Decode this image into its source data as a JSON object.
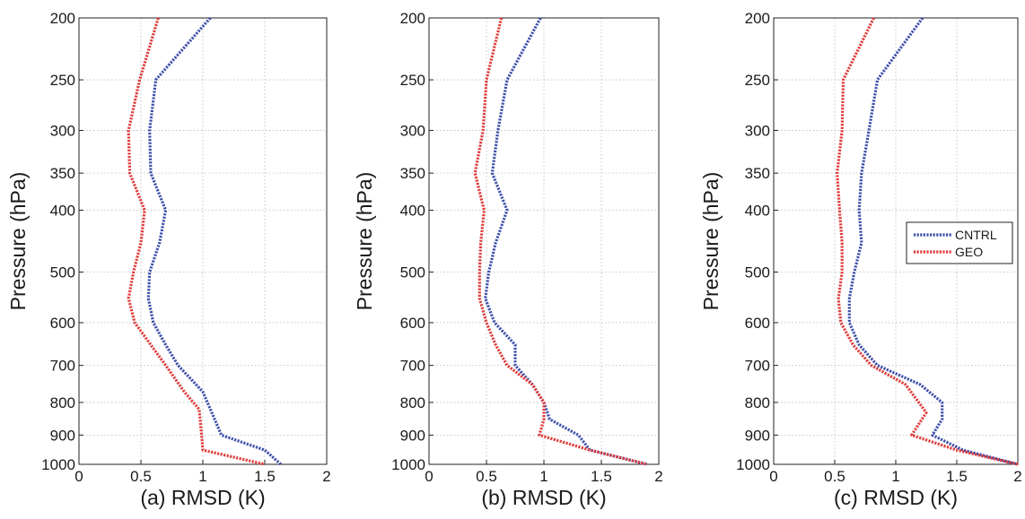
{
  "chart_data": [
    {
      "type": "line",
      "xlabel": "(a) RMSD (K)",
      "ylabel": "Pressure (hPa)",
      "xlim": [
        0,
        2
      ],
      "ylim": [
        200,
        1000
      ],
      "yscale": "log",
      "y_inverted": true,
      "grid": true,
      "xticks": [
        "0",
        "0.5",
        "1",
        "1.5",
        "2"
      ],
      "yticks": [
        "200",
        "250",
        "300",
        "350",
        "400",
        "500",
        "600",
        "700",
        "800",
        "900",
        "1000"
      ],
      "series": [
        {
          "name": "CNTRL",
          "color": "#3d4faa",
          "points": [
            [
              1.06,
              200
            ],
            [
              0.62,
              250
            ],
            [
              0.57,
              300
            ],
            [
              0.58,
              350
            ],
            [
              0.7,
              400
            ],
            [
              0.65,
              450
            ],
            [
              0.57,
              500
            ],
            [
              0.56,
              550
            ],
            [
              0.6,
              600
            ],
            [
              0.7,
              650
            ],
            [
              0.8,
              700
            ],
            [
              1.0,
              770
            ],
            [
              1.15,
              900
            ],
            [
              1.5,
              950
            ],
            [
              1.63,
              1000
            ]
          ]
        },
        {
          "name": "GEO",
          "color": "#e03c3c",
          "points": [
            [
              0.64,
              200
            ],
            [
              0.49,
              250
            ],
            [
              0.4,
              300
            ],
            [
              0.41,
              350
            ],
            [
              0.53,
              400
            ],
            [
              0.5,
              450
            ],
            [
              0.44,
              500
            ],
            [
              0.4,
              550
            ],
            [
              0.45,
              600
            ],
            [
              0.58,
              650
            ],
            [
              0.7,
              700
            ],
            [
              0.85,
              770
            ],
            [
              0.97,
              820
            ],
            [
              0.99,
              900
            ],
            [
              1.0,
              950
            ],
            [
              1.5,
              1000
            ]
          ]
        }
      ]
    },
    {
      "type": "line",
      "xlabel": "(b) RMSD (K)",
      "ylabel": "Pressure (hPa)",
      "xlim": [
        0,
        2
      ],
      "ylim": [
        200,
        1000
      ],
      "yscale": "log",
      "y_inverted": true,
      "grid": true,
      "xticks": [
        "0",
        "0.5",
        "1",
        "1.5",
        "2"
      ],
      "yticks": [
        "200",
        "250",
        "300",
        "350",
        "400",
        "500",
        "600",
        "700",
        "800",
        "900",
        "1000"
      ],
      "series": [
        {
          "name": "CNTRL",
          "color": "#3d4faa",
          "points": [
            [
              0.97,
              200
            ],
            [
              0.68,
              250
            ],
            [
              0.6,
              300
            ],
            [
              0.55,
              350
            ],
            [
              0.68,
              400
            ],
            [
              0.58,
              450
            ],
            [
              0.52,
              500
            ],
            [
              0.49,
              550
            ],
            [
              0.57,
              600
            ],
            [
              0.75,
              650
            ],
            [
              0.75,
              700
            ],
            [
              0.9,
              750
            ],
            [
              1.0,
              800
            ],
            [
              1.05,
              850
            ],
            [
              1.3,
              900
            ],
            [
              1.4,
              950
            ],
            [
              1.9,
              1000
            ]
          ]
        },
        {
          "name": "GEO",
          "color": "#e03c3c",
          "points": [
            [
              0.63,
              200
            ],
            [
              0.5,
              250
            ],
            [
              0.47,
              300
            ],
            [
              0.4,
              350
            ],
            [
              0.48,
              400
            ],
            [
              0.45,
              450
            ],
            [
              0.44,
              500
            ],
            [
              0.44,
              550
            ],
            [
              0.5,
              600
            ],
            [
              0.58,
              650
            ],
            [
              0.68,
              700
            ],
            [
              0.9,
              750
            ],
            [
              1.0,
              800
            ],
            [
              1.0,
              850
            ],
            [
              0.96,
              900
            ],
            [
              1.4,
              950
            ],
            [
              1.9,
              1000
            ]
          ]
        }
      ]
    },
    {
      "type": "line",
      "xlabel": "(c) RMSD (K)",
      "ylabel": "Pressure (hPa)",
      "xlim": [
        0,
        2
      ],
      "ylim": [
        200,
        1000
      ],
      "yscale": "log",
      "y_inverted": true,
      "grid": true,
      "xticks": [
        "0",
        "0.5",
        "1",
        "1.5",
        "2"
      ],
      "yticks": [
        "200",
        "250",
        "300",
        "350",
        "400",
        "500",
        "600",
        "700",
        "800",
        "900",
        "1000"
      ],
      "legend": {
        "placement": "center-right",
        "entries": [
          "CNTRL",
          "GEO"
        ]
      },
      "series": [
        {
          "name": "CNTRL",
          "color": "#3d4faa",
          "points": [
            [
              1.22,
              200
            ],
            [
              0.85,
              250
            ],
            [
              0.78,
              300
            ],
            [
              0.72,
              350
            ],
            [
              0.7,
              400
            ],
            [
              0.72,
              450
            ],
            [
              0.66,
              500
            ],
            [
              0.62,
              550
            ],
            [
              0.62,
              600
            ],
            [
              0.7,
              650
            ],
            [
              0.85,
              700
            ],
            [
              1.2,
              750
            ],
            [
              1.38,
              800
            ],
            [
              1.38,
              850
            ],
            [
              1.3,
              900
            ],
            [
              1.55,
              950
            ],
            [
              2.0,
              1000
            ]
          ]
        },
        {
          "name": "GEO",
          "color": "#e03c3c",
          "points": [
            [
              0.82,
              200
            ],
            [
              0.57,
              250
            ],
            [
              0.56,
              300
            ],
            [
              0.52,
              350
            ],
            [
              0.54,
              400
            ],
            [
              0.56,
              450
            ],
            [
              0.56,
              500
            ],
            [
              0.53,
              550
            ],
            [
              0.55,
              600
            ],
            [
              0.65,
              650
            ],
            [
              0.8,
              700
            ],
            [
              1.08,
              750
            ],
            [
              1.25,
              830
            ],
            [
              1.13,
              900
            ],
            [
              1.5,
              950
            ],
            [
              2.0,
              1000
            ]
          ]
        }
      ]
    }
  ]
}
